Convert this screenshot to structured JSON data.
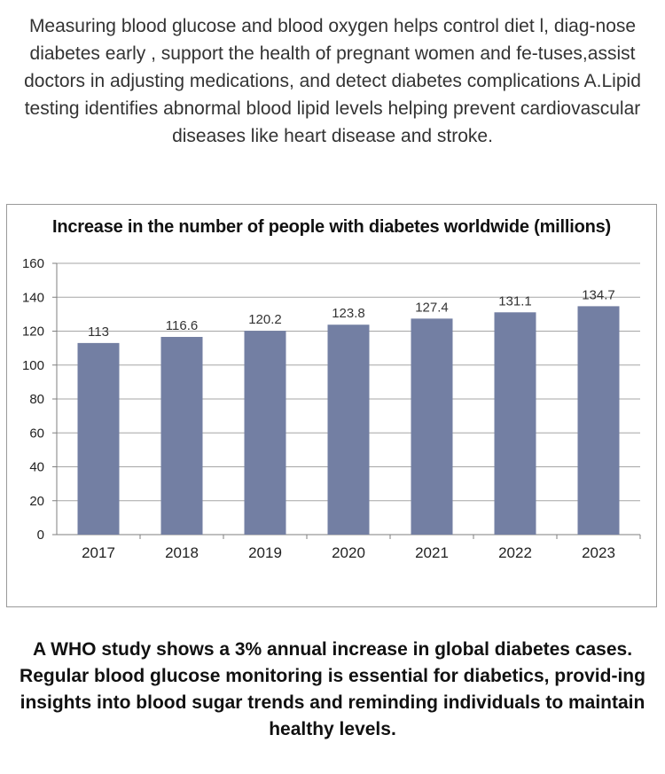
{
  "intro": {
    "text": "Measuring blood glucose and blood oxygen helps control diet l, diag-nose diabetes early , support the health of pregnant women and fe-tuses,assist doctors in adjusting medications, and detect diabetes complications A.Lipid testing identifies abnormal blood lipid levels helping prevent cardiovascular diseases like heart disease and stroke."
  },
  "chart_data": {
    "type": "bar",
    "title": "Increase in the number of people with diabetes worldwide (millions)",
    "categories": [
      "2017",
      "2018",
      "2019",
      "2020",
      "2021",
      "2022",
      "2023"
    ],
    "values": [
      113,
      116.6,
      120.2,
      123.8,
      127.4,
      131.1,
      134.7
    ],
    "value_labels": [
      "113",
      "116.6",
      "120.2",
      "123.8",
      "127.4",
      "131.1",
      "134.7"
    ],
    "yticks": [
      0,
      20,
      40,
      60,
      80,
      100,
      120,
      140,
      160
    ],
    "ylim": [
      0,
      160
    ],
    "grid": true,
    "legend": "none",
    "bar_color": "#737fa3"
  },
  "outro": {
    "text": "A WHO study shows a 3% annual increase in global diabetes cases. Regular blood glucose monitoring is essential for diabetics, provid-ing insights into blood sugar trends and reminding individuals to maintain healthy levels."
  }
}
